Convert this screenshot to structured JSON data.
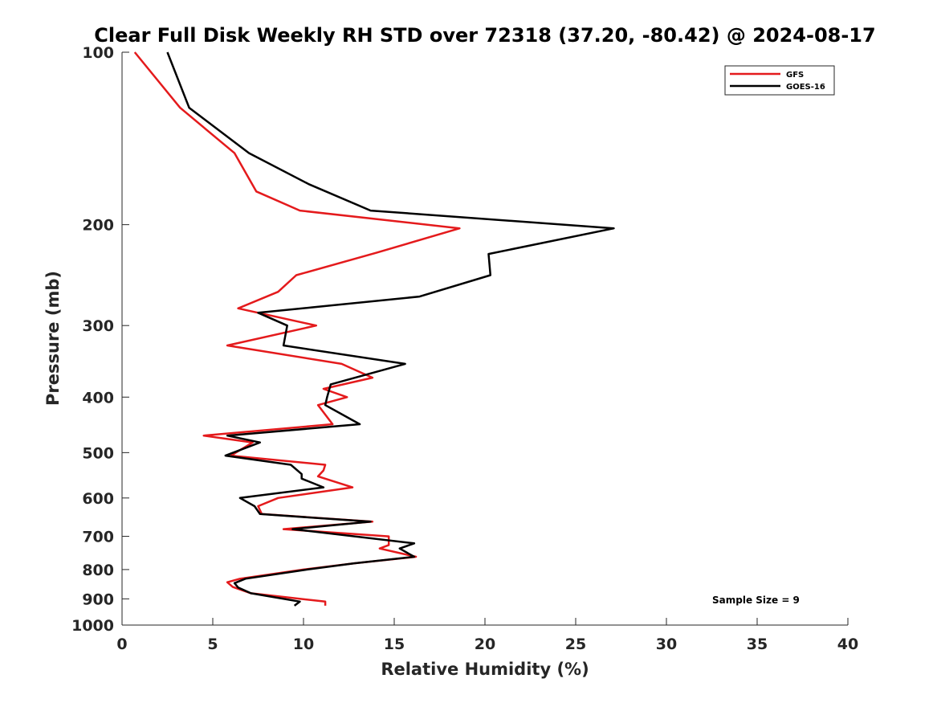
{
  "chart_data": {
    "type": "line",
    "title": "Clear Full Disk Weekly RH STD over 72318 (37.20, -80.42) @ 2024-08-17",
    "xlabel": "Relative Humidity (%)",
    "ylabel": "Pressure (mb)",
    "xlim": [
      0,
      40
    ],
    "ylim": [
      100,
      1000
    ],
    "yscale": "log",
    "y_reversed": true,
    "xticks": [
      0,
      5,
      10,
      15,
      20,
      25,
      30,
      35,
      40
    ],
    "yticks": [
      100,
      200,
      300,
      400,
      500,
      600,
      700,
      800,
      900,
      1000
    ],
    "grid": false,
    "legend_position": "top-right",
    "annotation": "Sample Size = 9",
    "series": [
      {
        "name": "GFS",
        "color": "#e41a1c",
        "points": [
          [
            0.7,
            100
          ],
          [
            3.2,
            125
          ],
          [
            6.2,
            150
          ],
          [
            7.4,
            175
          ],
          [
            9.8,
            189
          ],
          [
            18.6,
            203
          ],
          [
            14,
            224
          ],
          [
            9.6,
            245
          ],
          [
            8.6,
            262
          ],
          [
            6.4,
            280
          ],
          [
            10.7,
            300
          ],
          [
            5.8,
            325
          ],
          [
            12.1,
            350
          ],
          [
            13.8,
            370
          ],
          [
            11.1,
            387
          ],
          [
            12.4,
            400
          ],
          [
            10.8,
            413
          ],
          [
            11.6,
            446
          ],
          [
            4.5,
            467
          ],
          [
            7.2,
            480
          ],
          [
            6,
            506
          ],
          [
            11.2,
            525
          ],
          [
            11.1,
            537
          ],
          [
            10.8,
            550
          ],
          [
            12.7,
            575
          ],
          [
            8.6,
            600
          ],
          [
            7.5,
            620
          ],
          [
            7.7,
            640
          ],
          [
            13.8,
            660
          ],
          [
            8.9,
            680
          ],
          [
            14.7,
            700
          ],
          [
            14.7,
            725
          ],
          [
            14.2,
            735
          ],
          [
            16.2,
            760
          ],
          [
            12.8,
            780
          ],
          [
            10,
            800
          ],
          [
            6.5,
            830
          ],
          [
            5.8,
            842
          ],
          [
            6.1,
            858
          ],
          [
            7.1,
            880
          ],
          [
            11.2,
            910
          ],
          [
            11.2,
            925
          ]
        ]
      },
      {
        "name": "GOES-16",
        "color": "#000000",
        "points": [
          [
            2.5,
            100
          ],
          [
            3.7,
            125
          ],
          [
            7,
            150
          ],
          [
            10.3,
            170
          ],
          [
            13.7,
            189
          ],
          [
            27.1,
            203
          ],
          [
            20.2,
            225
          ],
          [
            20.3,
            245
          ],
          [
            16.4,
            267
          ],
          [
            7.5,
            285
          ],
          [
            9.1,
            300
          ],
          [
            8.9,
            325
          ],
          [
            15.6,
            350
          ],
          [
            11.5,
            380
          ],
          [
            11.3,
            400
          ],
          [
            11.2,
            413
          ],
          [
            13.1,
            446
          ],
          [
            5.8,
            467
          ],
          [
            7.6,
            480
          ],
          [
            5.7,
            506
          ],
          [
            9.3,
            525
          ],
          [
            9.9,
            545
          ],
          [
            9.9,
            555
          ],
          [
            11.1,
            575
          ],
          [
            6.5,
            600
          ],
          [
            7.3,
            620
          ],
          [
            7.6,
            640
          ],
          [
            13.7,
            660
          ],
          [
            9.4,
            680
          ],
          [
            16.1,
            720
          ],
          [
            15.3,
            735
          ],
          [
            16.1,
            760
          ],
          [
            12.8,
            780
          ],
          [
            10.2,
            800
          ],
          [
            6.8,
            830
          ],
          [
            6.2,
            845
          ],
          [
            6.4,
            860
          ],
          [
            7.1,
            880
          ],
          [
            9.8,
            910
          ],
          [
            9.5,
            925
          ]
        ]
      }
    ]
  }
}
